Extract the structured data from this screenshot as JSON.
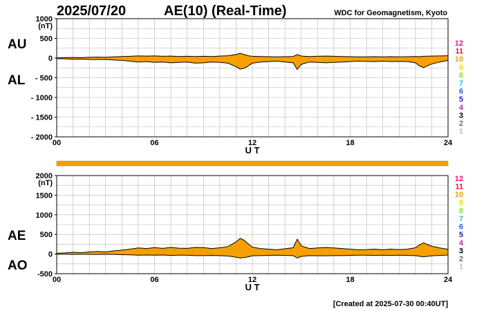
{
  "header": {
    "date": "2025/07/20",
    "title": "AE(10) (Real-Time)",
    "organization": "WDC for Geomagnetism, Kyoto"
  },
  "footer": {
    "created": "[Created at 2025-07-30 00:40UT]"
  },
  "station_scale": {
    "labels": [
      "12",
      "11",
      "10",
      "9",
      "8",
      "7",
      "6",
      "5",
      "4",
      "3",
      "2",
      "1"
    ],
    "colors": [
      "#e8127a",
      "#e8122a",
      "#f5a000",
      "#e8e000",
      "#90e030",
      "#20c0e0",
      "#2060e0",
      "#2020c0",
      "#c020c0",
      "#000000",
      "#707070",
      "#c0c0c0"
    ]
  },
  "chart_data": [
    {
      "type": "area",
      "id": "au-al",
      "series_labels": [
        "AU",
        "AL"
      ],
      "unit": "(nT)",
      "xlabel": "U T",
      "xlim": [
        0,
        24
      ],
      "xticks": [
        "00",
        "06",
        "12",
        "18",
        "24"
      ],
      "ylim": [
        -2000,
        1000
      ],
      "yticks": [
        "1000",
        "500",
        "0",
        "- 500",
        "- 1000",
        "- 1500",
        "- 2000"
      ],
      "grid": true,
      "fill_color": "#f5a000",
      "x": [
        0,
        0.5,
        1,
        1.5,
        2,
        2.5,
        3,
        3.5,
        4,
        4.5,
        5,
        5.5,
        6,
        6.5,
        7,
        7.5,
        8,
        8.5,
        9,
        9.5,
        10,
        10.5,
        11,
        11.25,
        11.5,
        11.75,
        12,
        12.5,
        13,
        13.5,
        14,
        14.5,
        14.75,
        15,
        15.5,
        16,
        16.5,
        17,
        17.5,
        18,
        18.5,
        19,
        19.5,
        20,
        20.5,
        21,
        21.5,
        22,
        22.25,
        22.5,
        23,
        23.5,
        24
      ],
      "upper": [
        5,
        10,
        15,
        10,
        20,
        25,
        20,
        30,
        40,
        45,
        55,
        50,
        55,
        45,
        50,
        40,
        45,
        40,
        45,
        40,
        50,
        60,
        90,
        120,
        90,
        60,
        45,
        40,
        35,
        30,
        35,
        40,
        90,
        50,
        40,
        45,
        50,
        45,
        40,
        35,
        30,
        30,
        35,
        30,
        35,
        30,
        35,
        40,
        35,
        45,
        50,
        55,
        60
      ],
      "lower": [
        -15,
        -20,
        -30,
        -25,
        -35,
        -40,
        -35,
        -50,
        -60,
        -80,
        -100,
        -90,
        -110,
        -100,
        -120,
        -110,
        -100,
        -130,
        -120,
        -100,
        -110,
        -130,
        -220,
        -280,
        -260,
        -200,
        -130,
        -100,
        -90,
        -80,
        -100,
        -120,
        -290,
        -160,
        -100,
        -110,
        -120,
        -110,
        -100,
        -90,
        -80,
        -85,
        -90,
        -80,
        -90,
        -85,
        -90,
        -120,
        -200,
        -240,
        -150,
        -100,
        -60
      ]
    },
    {
      "type": "area",
      "id": "ae-ao",
      "series_labels": [
        "AE",
        "AO"
      ],
      "unit": "(nT)",
      "xlabel": "U T",
      "xlim": [
        0,
        24
      ],
      "xticks": [
        "00",
        "06",
        "12",
        "18",
        "24"
      ],
      "ylim": [
        -500,
        2000
      ],
      "yticks": [
        "2000",
        "1500",
        "1000",
        "500",
        "0",
        "-500"
      ],
      "grid": true,
      "fill_color": "#f5a000",
      "x": [
        0,
        0.5,
        1,
        1.5,
        2,
        2.5,
        3,
        3.5,
        4,
        4.5,
        5,
        5.5,
        6,
        6.5,
        7,
        7.5,
        8,
        8.5,
        9,
        9.5,
        10,
        10.5,
        11,
        11.25,
        11.5,
        11.75,
        12,
        12.5,
        13,
        13.5,
        14,
        14.5,
        14.75,
        15,
        15.5,
        16,
        16.5,
        17,
        17.5,
        18,
        18.5,
        19,
        19.5,
        20,
        20.5,
        21,
        21.5,
        22,
        22.25,
        22.5,
        23,
        23.5,
        24
      ],
      "upper": [
        20,
        30,
        45,
        35,
        55,
        65,
        55,
        80,
        100,
        125,
        155,
        140,
        165,
        145,
        170,
        150,
        145,
        170,
        165,
        140,
        160,
        190,
        310,
        400,
        350,
        260,
        175,
        140,
        125,
        110,
        135,
        160,
        380,
        210,
        140,
        155,
        170,
        155,
        140,
        125,
        110,
        115,
        125,
        110,
        125,
        115,
        125,
        160,
        235,
        285,
        200,
        155,
        120
      ],
      "lower": [
        -5,
        -5,
        -10,
        -8,
        -8,
        -10,
        -8,
        -10,
        -15,
        -20,
        -30,
        -25,
        -30,
        -25,
        -35,
        -30,
        -30,
        -40,
        -40,
        -35,
        -40,
        -50,
        -80,
        -100,
        -90,
        -70,
        -45,
        -40,
        -35,
        -30,
        -35,
        -40,
        -100,
        -60,
        -40,
        -45,
        -45,
        -40,
        -40,
        -35,
        -30,
        -30,
        -35,
        -30,
        -35,
        -30,
        -35,
        -40,
        -55,
        -70,
        -45,
        -35,
        -25
      ]
    }
  ],
  "ae_status_bar": {
    "color": "#f5a000"
  }
}
